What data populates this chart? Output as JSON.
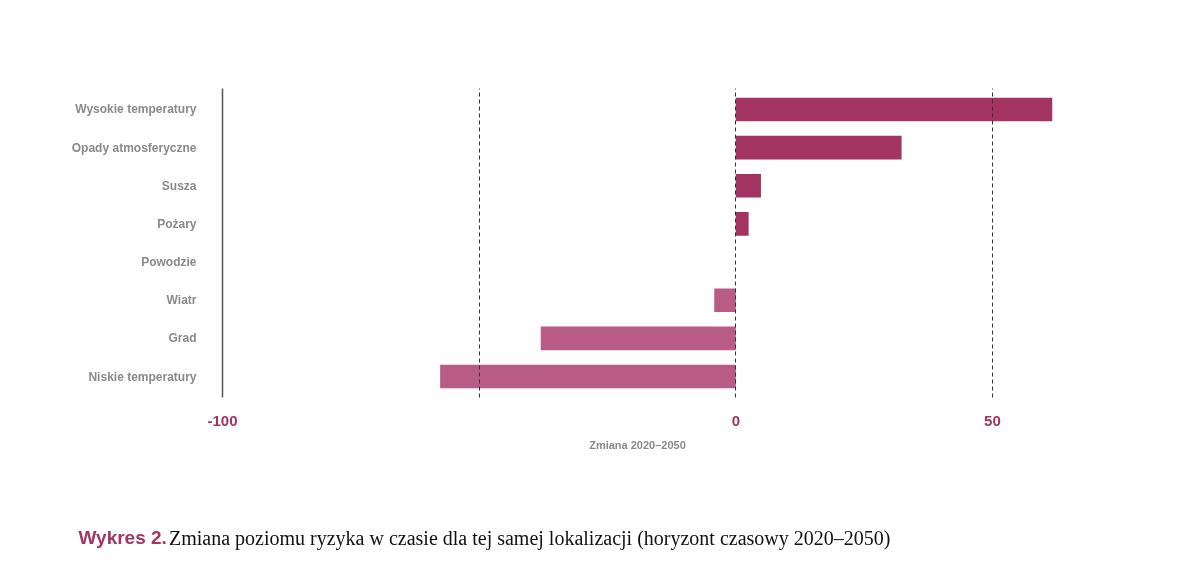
{
  "chart_data": {
    "type": "bar",
    "orientation": "horizontal",
    "title": "Wykres 2.",
    "subtitle": "Zmiana poziomu ryzyka w czasie dla tej samej lokalizacji (horyzont czasowy 2020–2050)",
    "xlabel": "Zmiana 2020–2050",
    "categories": [
      "Wysokie temperatury",
      "Opady atmosferyczne",
      "Susza",
      "Pożary",
      "Powodzie",
      "Wiatr",
      "Grad",
      "Niskie temperatury"
    ],
    "values": [
      61.7,
      32.3,
      4.9,
      2.5,
      0,
      -4.2,
      -38,
      -57.6
    ],
    "colors": [
      "#a33461",
      "#a33461",
      "#a33461",
      "#a33461",
      "#a33461",
      "#b85b85",
      "#b85b85",
      "#b85b85"
    ],
    "xlim": [
      -100,
      61.7
    ],
    "xticks": [
      -100,
      {
        "value": -50,
        "label": null
      },
      0,
      50
    ],
    "grid": "x"
  }
}
